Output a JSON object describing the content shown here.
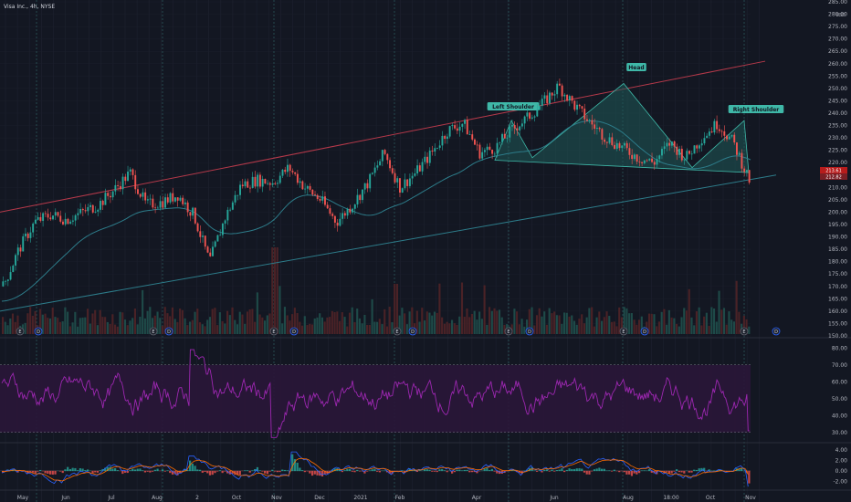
{
  "header": {
    "title": "Visa Inc., 4h, NYSE",
    "currency": "USD"
  },
  "chart_data": {
    "type": "candlestick",
    "symbol": "Visa Inc.",
    "interval": "4h",
    "exchange": "NYSE",
    "price_axis": {
      "labels": [
        "285.00",
        "280.00",
        "275.00",
        "270.00",
        "265.00",
        "260.00",
        "255.00",
        "250.00",
        "245.00",
        "240.00",
        "235.00",
        "230.00",
        "225.00",
        "220.00",
        "215.00",
        "210.00",
        "205.00",
        "200.00",
        "195.00",
        "190.00",
        "185.00",
        "180.00",
        "175.00",
        "170.00",
        "165.00",
        "160.00",
        "155.00",
        "150.00"
      ],
      "range": [
        150,
        285
      ]
    },
    "current_price_labels": [
      "213.61",
      "212.82"
    ],
    "time_axis": [
      "May",
      "Jun",
      "Jul",
      "Aug",
      "2",
      "Oct",
      "Nov",
      "Dec",
      "2021",
      "Feb",
      "Apr",
      "Jun",
      "Aug",
      "18:00",
      "Oct",
      "Nov"
    ],
    "price_series": [
      {
        "date": "2020-05",
        "price": 170
      },
      {
        "date": "2020-05",
        "price": 185
      },
      {
        "date": "2020-06",
        "price": 196
      },
      {
        "date": "2020-06",
        "price": 199
      },
      {
        "date": "2020-07",
        "price": 197
      },
      {
        "date": "2020-07",
        "price": 200
      },
      {
        "date": "2020-08",
        "price": 203
      },
      {
        "date": "2020-08",
        "price": 209
      },
      {
        "date": "2020-09",
        "price": 216
      },
      {
        "date": "2020-09",
        "price": 203
      },
      {
        "date": "2020-10",
        "price": 204
      },
      {
        "date": "2020-10",
        "price": 207
      },
      {
        "date": "2020-10",
        "price": 199
      },
      {
        "date": "2020-10",
        "price": 180
      },
      {
        "date": "2020-11",
        "price": 198
      },
      {
        "date": "2020-11",
        "price": 211
      },
      {
        "date": "2020-12",
        "price": 213
      },
      {
        "date": "2020-12",
        "price": 212
      },
      {
        "date": "2021-01",
        "price": 218
      },
      {
        "date": "2021-01",
        "price": 210
      },
      {
        "date": "2021-02",
        "price": 205
      },
      {
        "date": "2021-02",
        "price": 196
      },
      {
        "date": "2021-02",
        "price": 203
      },
      {
        "date": "2021-03",
        "price": 212
      },
      {
        "date": "2021-03",
        "price": 224
      },
      {
        "date": "2021-04",
        "price": 210
      },
      {
        "date": "2021-04",
        "price": 216
      },
      {
        "date": "2021-04",
        "price": 224
      },
      {
        "date": "2021-05",
        "price": 233
      },
      {
        "date": "2021-05",
        "price": 236
      },
      {
        "date": "2021-05",
        "price": 224
      },
      {
        "date": "2021-06",
        "price": 226
      },
      {
        "date": "2021-06",
        "price": 233
      },
      {
        "date": "2021-07",
        "price": 238
      },
      {
        "date": "2021-07",
        "price": 244
      },
      {
        "date": "2021-07",
        "price": 251
      },
      {
        "date": "2021-08",
        "price": 243
      },
      {
        "date": "2021-08",
        "price": 236
      },
      {
        "date": "2021-08",
        "price": 230
      },
      {
        "date": "2021-09",
        "price": 226
      },
      {
        "date": "2021-09",
        "price": 222
      },
      {
        "date": "2021-09",
        "price": 220
      },
      {
        "date": "2021-10",
        "price": 228
      },
      {
        "date": "2021-10",
        "price": 222
      },
      {
        "date": "2021-10",
        "price": 230
      },
      {
        "date": "2021-10",
        "price": 236
      },
      {
        "date": "2021-10",
        "price": 228
      },
      {
        "date": "2021-10",
        "price": 213
      }
    ],
    "trendlines": {
      "upper": {
        "start": 200,
        "end": 261
      },
      "lower": {
        "start": 160,
        "end": 215
      }
    },
    "pattern": {
      "name": "Head and Shoulders",
      "labels": [
        "Left Shoulder",
        "Head",
        "Right Shoulder"
      ],
      "points": [
        {
          "date": "2021-04",
          "price": 221
        },
        {
          "date": "2021-05",
          "price": 237
        },
        {
          "date": "2021-06",
          "price": 222
        },
        {
          "date": "2021-07",
          "price": 252
        },
        {
          "date": "2021-09",
          "price": 218
        },
        {
          "date": "2021-10",
          "price": 237
        },
        {
          "date": "2021-10",
          "price": 216
        }
      ]
    },
    "earnings_markers": [
      "E",
      "D",
      "E",
      "D",
      "E",
      "D",
      "E",
      "D",
      "E",
      "D",
      "E",
      "D",
      "E",
      "D"
    ],
    "rsi": {
      "labels": [
        "80.00",
        "70.00",
        "60.00",
        "50.00",
        "40.00",
        "30.00"
      ],
      "upper": 70,
      "lower": 30
    },
    "macd": {
      "labels": [
        "4.00",
        "2.00",
        "0.00",
        "-2.00"
      ]
    },
    "colors": {
      "background": "#131722",
      "up": "#26a69a",
      "down": "#ef5350",
      "ma": "#2d7c8a",
      "upper_trend": "#b5394a",
      "lower_trend": "#2d7c8a",
      "pattern_fill": "#1f5a57",
      "pattern_line": "#3fb8a8",
      "rsi_line": "#9c27b0",
      "rsi_band": "#2a1638",
      "macd_line": "#2962ff",
      "signal_line": "#ff6d00"
    }
  }
}
